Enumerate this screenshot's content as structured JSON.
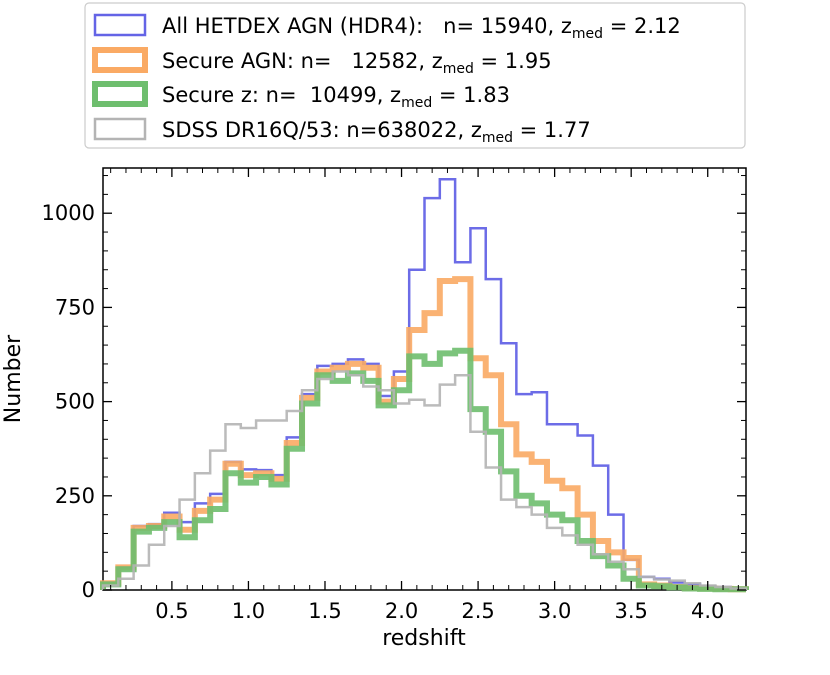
{
  "chart_data": {
    "type": "histogram",
    "title": "",
    "xlabel": "redshift",
    "ylabel": "Number",
    "xlim": [
      0.05,
      4.25
    ],
    "ylim": [
      0,
      1120
    ],
    "xticks": [
      0.5,
      1.0,
      1.5,
      2.0,
      2.5,
      3.0,
      3.5,
      4.0
    ],
    "xtick_labels": [
      "0.5",
      "1.0",
      "1.5",
      "2.0",
      "2.5",
      "3.0",
      "3.5",
      "4.0"
    ],
    "yticks": [
      0,
      250,
      500,
      750,
      1000
    ],
    "ytick_labels": [
      "0",
      "250",
      "500",
      "750",
      "1000"
    ],
    "grid": false,
    "legend_position": "top",
    "bin_edges": [
      0.05,
      0.15,
      0.25,
      0.35,
      0.45,
      0.55,
      0.65,
      0.75,
      0.85,
      0.95,
      1.05,
      1.15,
      1.25,
      1.35,
      1.45,
      1.55,
      1.65,
      1.75,
      1.85,
      1.95,
      2.05,
      2.15,
      2.25,
      2.35,
      2.45,
      2.55,
      2.65,
      2.75,
      2.85,
      2.95,
      3.05,
      3.15,
      3.25,
      3.35,
      3.45,
      3.55,
      3.65,
      3.75,
      3.85,
      3.95,
      4.05,
      4.15,
      4.25
    ],
    "series": [
      {
        "name": "All HETDEX AGN (HDR4):",
        "legend_prefix": "All HETDEX AGN (HDR4):   n= 15940, z",
        "legend_sub": "med",
        "legend_suffix": " = 2.12",
        "color": "#6464e6",
        "line_width": 2.5,
        "counts": [
          20,
          60,
          170,
          175,
          205,
          180,
          230,
          255,
          340,
          320,
          318,
          305,
          405,
          520,
          595,
          600,
          612,
          600,
          515,
          580,
          850,
          1040,
          1090,
          870,
          960,
          825,
          655,
          520,
          525,
          440,
          440,
          410,
          330,
          200,
          80,
          35,
          30,
          20,
          15,
          10,
          8,
          5
        ]
      },
      {
        "name": "Secure AGN:",
        "legend_prefix": "Secure AGN: n=   12582, z",
        "legend_sub": "med",
        "legend_suffix": " = 1.95",
        "color": "#faaa64",
        "line_width": 6,
        "counts": [
          18,
          60,
          165,
          170,
          195,
          160,
          210,
          240,
          335,
          305,
          310,
          295,
          390,
          510,
          580,
          590,
          600,
          590,
          500,
          560,
          690,
          735,
          820,
          825,
          615,
          570,
          440,
          360,
          340,
          290,
          270,
          200,
          130,
          100,
          85,
          15,
          12,
          8,
          5,
          4,
          3,
          2
        ]
      },
      {
        "name": "Secure z:",
        "legend_prefix": "Secure z: n=  10499, z",
        "legend_sub": "med",
        "legend_suffix": " = 1.83",
        "color": "#6ebe6e",
        "line_width": 6,
        "counts": [
          15,
          55,
          155,
          165,
          180,
          140,
          185,
          215,
          310,
          285,
          300,
          280,
          375,
          495,
          570,
          555,
          575,
          555,
          490,
          530,
          620,
          600,
          628,
          635,
          480,
          420,
          315,
          250,
          230,
          200,
          185,
          130,
          90,
          65,
          30,
          12,
          10,
          7,
          4,
          3,
          2,
          2
        ]
      },
      {
        "name": "SDSS DR16Q/53:",
        "legend_prefix": "SDSS DR16Q/53: n=638022, z",
        "legend_sub": "med",
        "legend_suffix": " = 1.77",
        "color": "#b4b4b4",
        "line_width": 2.5,
        "counts": [
          12,
          30,
          65,
          120,
          170,
          240,
          310,
          370,
          440,
          430,
          450,
          450,
          475,
          530,
          560,
          580,
          570,
          540,
          530,
          495,
          505,
          490,
          545,
          570,
          420,
          325,
          240,
          220,
          200,
          165,
          145,
          120,
          95,
          75,
          55,
          35,
          28,
          25,
          18,
          12,
          8,
          4
        ]
      }
    ]
  }
}
